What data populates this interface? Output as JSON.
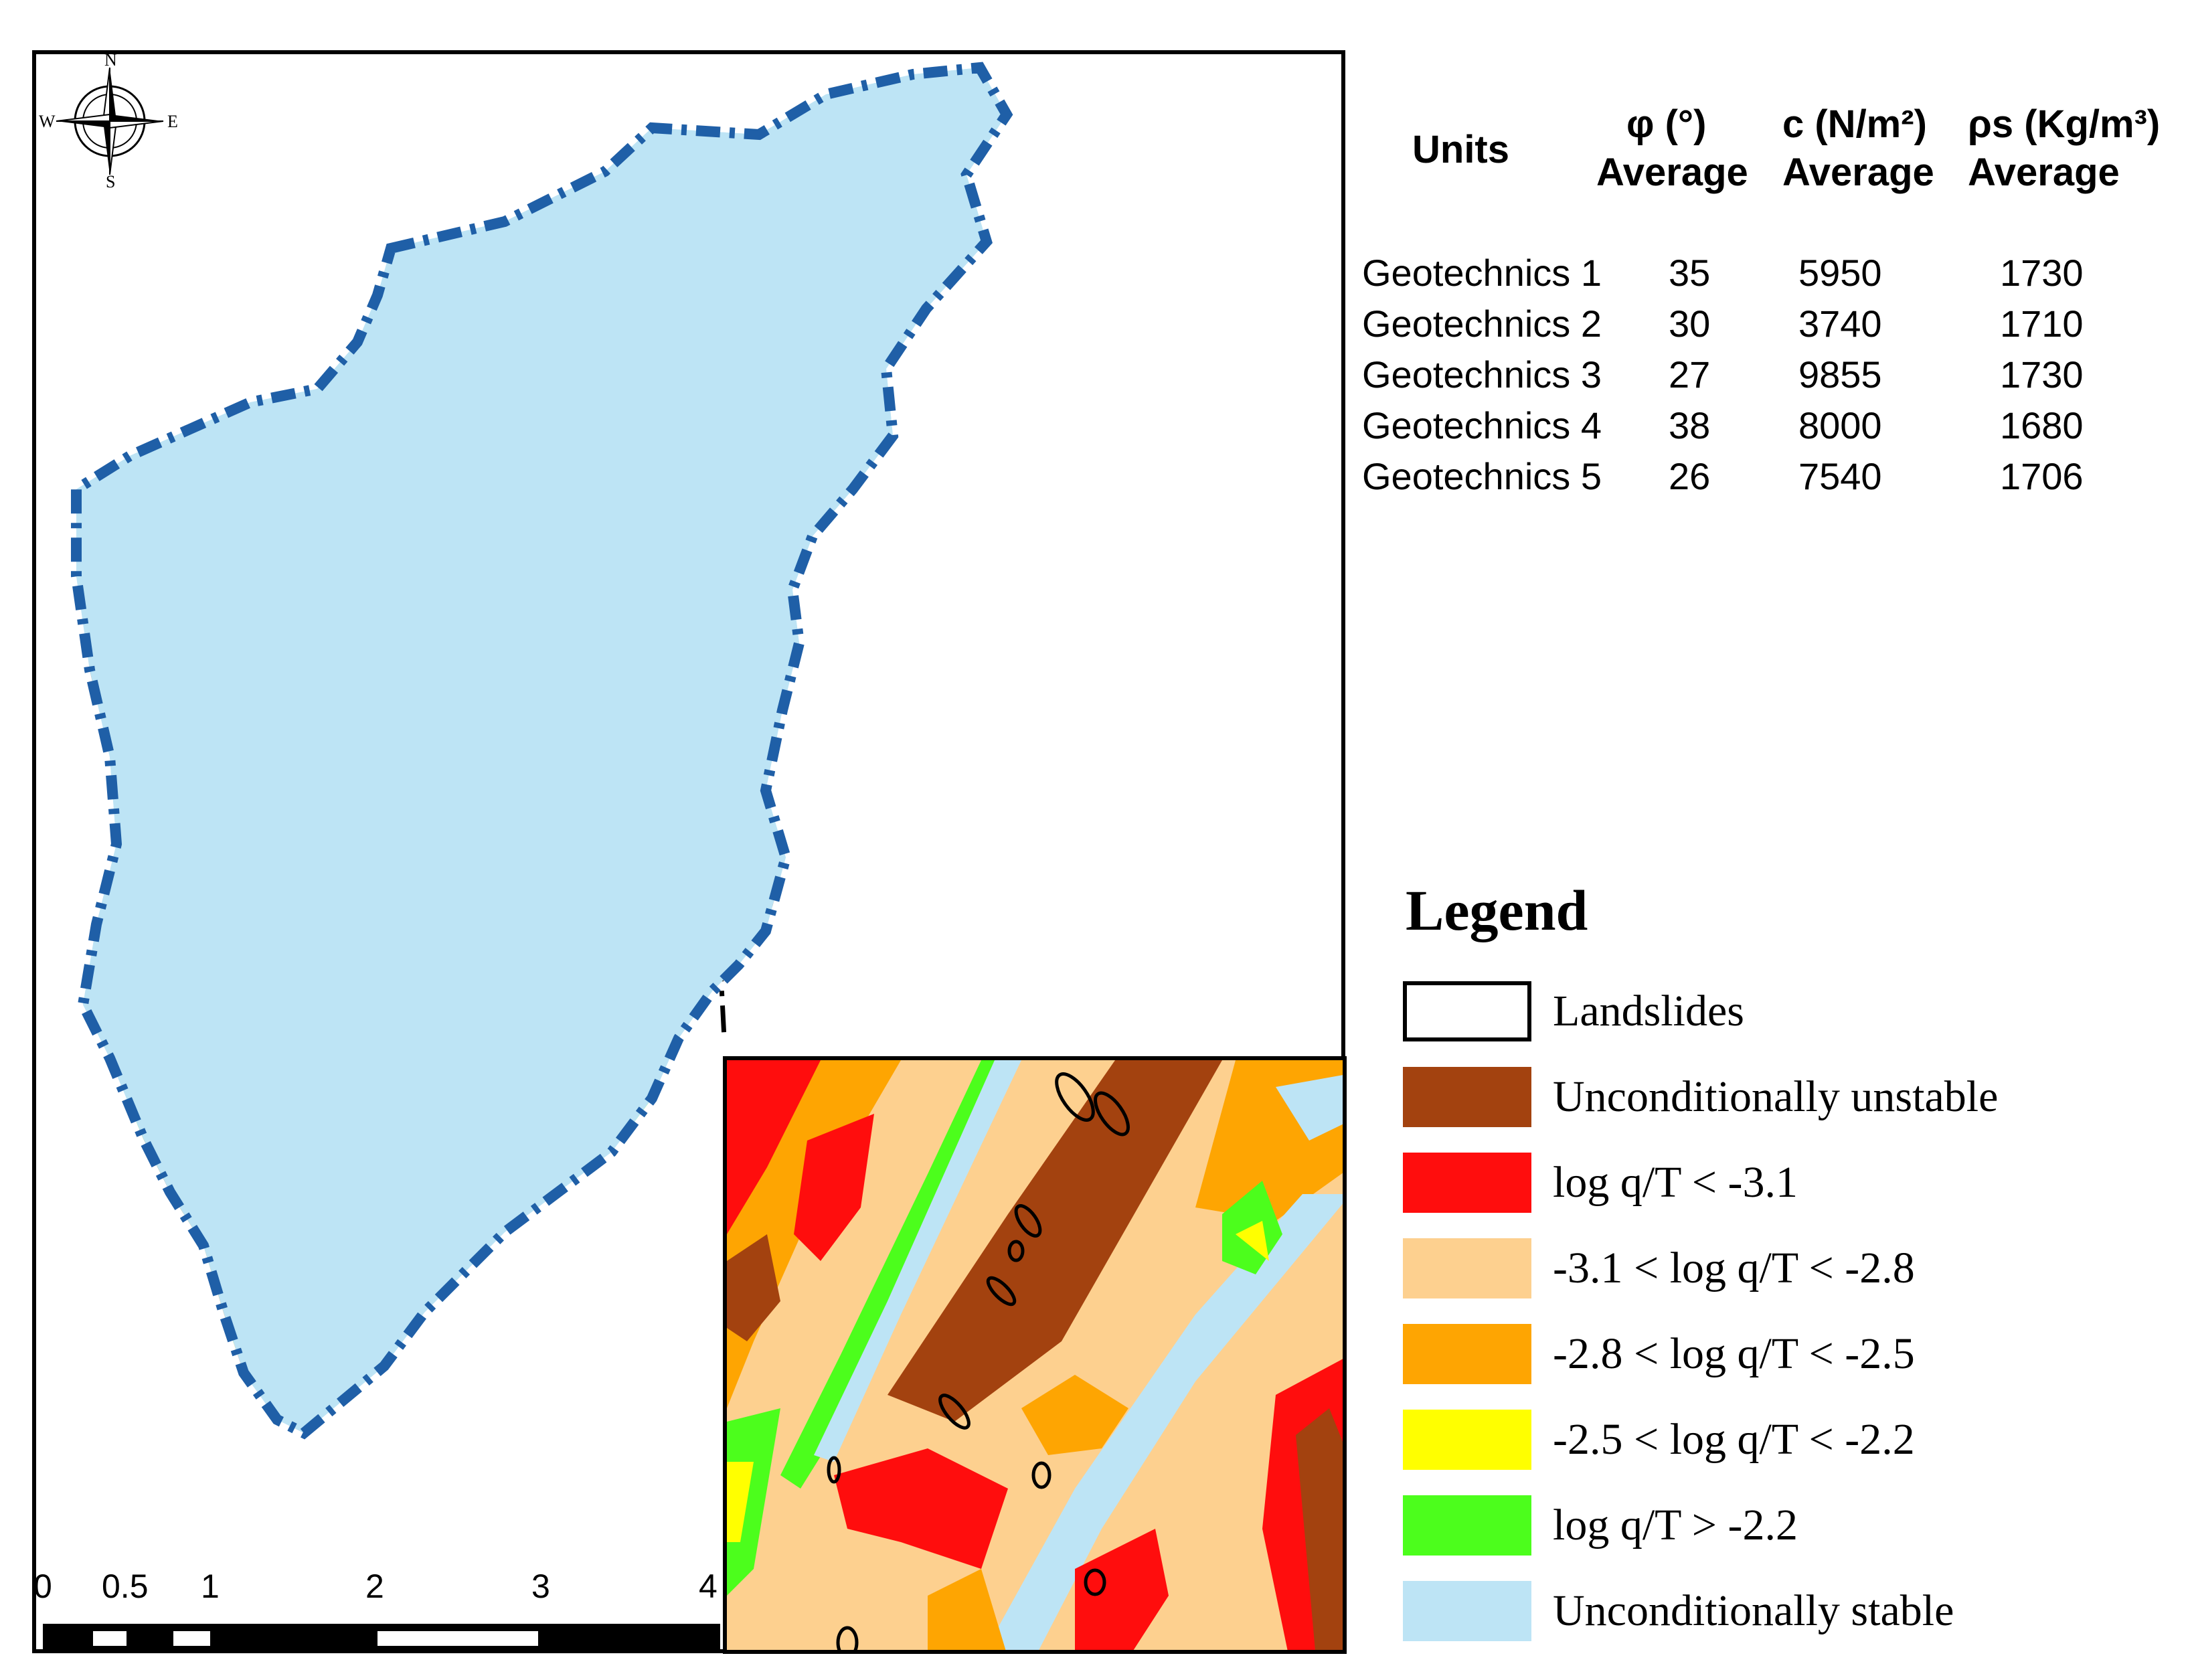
{
  "compass": {
    "north": "N",
    "south": "S",
    "east": "E",
    "west": "W"
  },
  "scale_bar": {
    "ticks": [
      "0",
      "0.5",
      "1",
      "2",
      "3",
      "4"
    ]
  },
  "table": {
    "headers": [
      {
        "line1": "Units",
        "line2": ""
      },
      {
        "line1": "φ (°)",
        "line2": "Average"
      },
      {
        "line1": "c (N/m²)",
        "line2": "Average"
      },
      {
        "line1": "ρs (Kg/m³)",
        "line2": "Average"
      }
    ],
    "rows": [
      {
        "unit": "Geotechnics 1",
        "phi": "35",
        "c": "5950",
        "rho": "1730"
      },
      {
        "unit": "Geotechnics 2",
        "phi": "30",
        "c": "3740",
        "rho": "1710"
      },
      {
        "unit": "Geotechnics 3",
        "phi": "27",
        "c": "9855",
        "rho": "1730"
      },
      {
        "unit": "Geotechnics 4",
        "phi": "38",
        "c": "8000",
        "rho": "1680"
      },
      {
        "unit": "Geotechnics 5",
        "phi": "26",
        "c": "7540",
        "rho": "1706"
      }
    ]
  },
  "legend": {
    "title": "Legend",
    "items": [
      {
        "label": "Landslides",
        "color": "#ffffff",
        "outline": true
      },
      {
        "label": "Unconditionally unstable",
        "color": "#a3420f"
      },
      {
        "label": "log q/T < -3.1",
        "color": "#ff0d0d"
      },
      {
        "label": "-3.1 < log q/T < -2.8",
        "color": "#fdd08f"
      },
      {
        "label": "-2.8 < log q/T < -2.5",
        "color": "#fea502"
      },
      {
        "label": "-2.5 < log q/T < -2.2",
        "color": "#ffff00"
      },
      {
        "label": "log q/T > -2.2",
        "color": "#4cfe1c"
      },
      {
        "label": "Unconditionally stable",
        "color": "#bde4f5"
      }
    ]
  },
  "colors": {
    "stable": "#bde4f5",
    "boundary": "#1f5fa7",
    "unstable": "#a3420f",
    "red": "#ff0d0d",
    "light_orange": "#fdd08f",
    "orange": "#fea502",
    "yellow": "#ffff00",
    "green": "#4cfe1c"
  }
}
